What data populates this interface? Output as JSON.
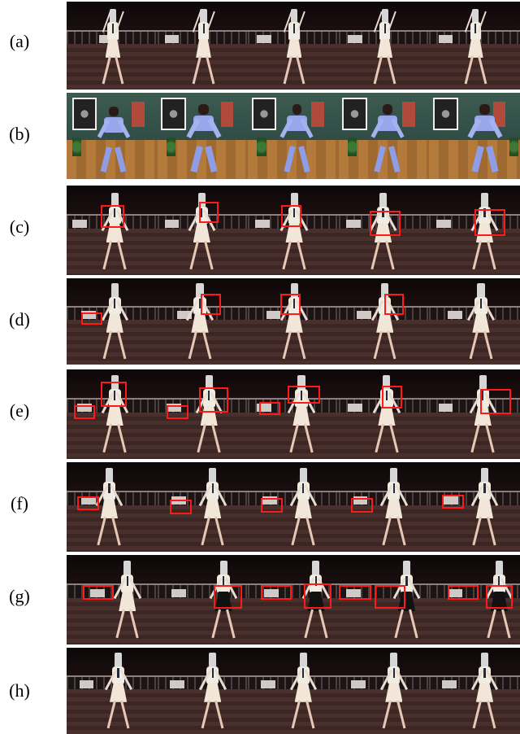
{
  "rows": [
    {
      "label": "(a)",
      "scene": "dance"
    },
    {
      "label": "(b)",
      "scene": "taichi"
    },
    {
      "label": "(c)",
      "scene": "dance"
    },
    {
      "label": "(d)",
      "scene": "dance"
    },
    {
      "label": "(e)",
      "scene": "dance"
    },
    {
      "label": "(f)",
      "scene": "dance"
    },
    {
      "label": "(g)",
      "scene": "dance"
    },
    {
      "label": "(h)",
      "scene": "dance"
    }
  ],
  "colors": {
    "highlight_box": "#ff1a1a",
    "background": "#ffffff"
  },
  "icons": {
    "face": "blurred-face-patch"
  }
}
